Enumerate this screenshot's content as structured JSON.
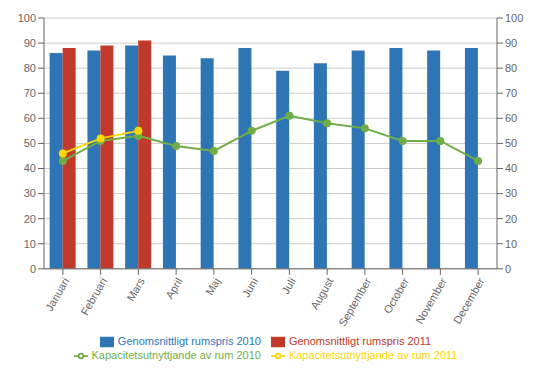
{
  "chart_data": {
    "type": "bar",
    "categories": [
      "Januari",
      "Februari",
      "Mars",
      "April",
      "Maj",
      "Juni",
      "Juli",
      "August",
      "September",
      "October",
      "November",
      "December"
    ],
    "series": [
      {
        "name": "Genomsnittligt rumspris 2010",
        "type": "bar",
        "color": "#2E75B6",
        "values": [
          86,
          87,
          89,
          85,
          84,
          88,
          79,
          82,
          87,
          88,
          87,
          88
        ]
      },
      {
        "name": "Genomsnittligt rumspris 2011",
        "type": "bar",
        "color": "#C0392B",
        "values": [
          88,
          89,
          91,
          null,
          null,
          null,
          null,
          null,
          null,
          null,
          null,
          null
        ]
      },
      {
        "name": "Kapacitetsutnyttjande av rum 2010",
        "type": "line",
        "axis": "y2",
        "marker": "circle",
        "color": "#70AD47",
        "values": [
          43,
          51,
          53,
          49,
          47,
          55,
          61,
          58,
          56,
          51,
          51,
          43
        ]
      },
      {
        "name": "Kapacitetsutnyttjande av rum 2011",
        "type": "line",
        "axis": "y2",
        "marker": "circle",
        "color": "#FFD700",
        "values": [
          46,
          52,
          55,
          null,
          null,
          null,
          null,
          null,
          null,
          null,
          null,
          null
        ]
      }
    ],
    "ylim": [
      0,
      100
    ],
    "yticks": [
      0,
      10,
      20,
      30,
      40,
      50,
      60,
      70,
      80,
      90,
      100
    ],
    "y2lim": [
      0,
      100
    ],
    "y2ticks": [
      0,
      10,
      20,
      30,
      40,
      50,
      60,
      70,
      80,
      90,
      100
    ],
    "grid": true,
    "legend": "bottom"
  }
}
